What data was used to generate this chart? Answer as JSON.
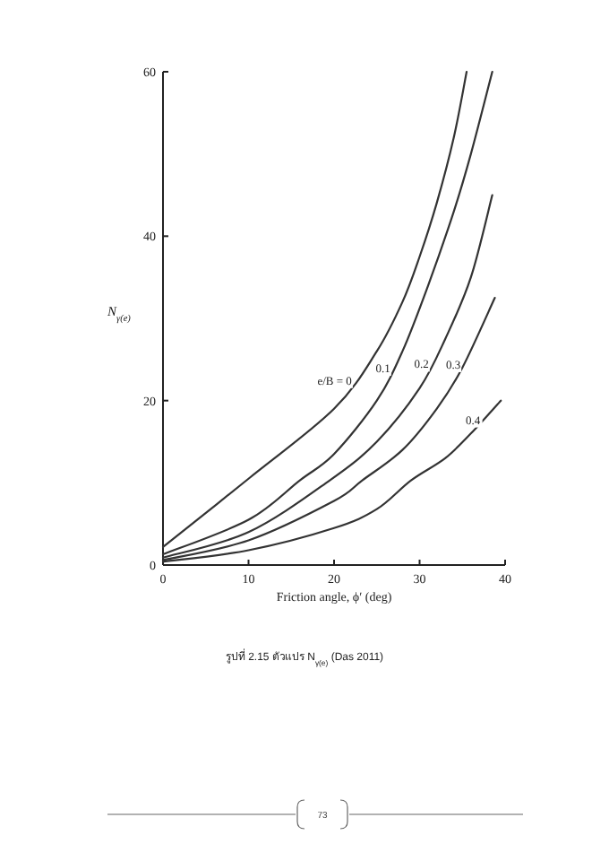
{
  "chart_data": {
    "type": "line",
    "ylabel": "N$_{γ(e)}$",
    "xlabel": "Friction angle, ϕ′ (deg)",
    "xlim": [
      0,
      40
    ],
    "xticks": [
      0,
      10,
      20,
      30,
      40
    ],
    "ylim": [
      0,
      60
    ],
    "yticks": [
      0,
      20,
      40,
      60
    ],
    "grid": false,
    "marker": "none",
    "line_style": "solid",
    "series": [
      {
        "name": "e/B = 0",
        "color": "#333333",
        "x": [
          0,
          10,
          20,
          25,
          28,
          30,
          32,
          34,
          35.5
        ],
        "values": [
          2.2,
          10.5,
          19,
          26,
          32,
          37.5,
          44,
          52,
          60
        ]
      },
      {
        "name": "0.1",
        "color": "#333333",
        "x": [
          0,
          10,
          16,
          20,
          25,
          28,
          31,
          34,
          36,
          38.5
        ],
        "values": [
          1.3,
          5.5,
          10.3,
          13.5,
          20,
          26,
          34,
          43,
          50,
          60
        ]
      },
      {
        "name": "0.2",
        "color": "#333333",
        "x": [
          0,
          10,
          19.5,
          25,
          30,
          33,
          36,
          38.5
        ],
        "values": [
          0.9,
          4,
          10.3,
          15,
          21.5,
          27.5,
          35,
          45
        ]
      },
      {
        "name": "0.3",
        "color": "#333333",
        "x": [
          0,
          10,
          20,
          23.3,
          28,
          32,
          35,
          38.8
        ],
        "values": [
          0.6,
          3,
          7.8,
          10.3,
          14,
          19,
          24,
          32.5
        ]
      },
      {
        "name": "0.4",
        "color": "#333333",
        "x": [
          0,
          10,
          20,
          25,
          29,
          33,
          36,
          39.5
        ],
        "values": [
          0.4,
          1.8,
          4.5,
          6.8,
          10.3,
          13,
          16,
          20
        ]
      }
    ],
    "annotations": [
      "รูปที่ 2.15 ตัวแปร N$_{γ(e)}$ (Das 2011)",
      "73"
    ]
  }
}
